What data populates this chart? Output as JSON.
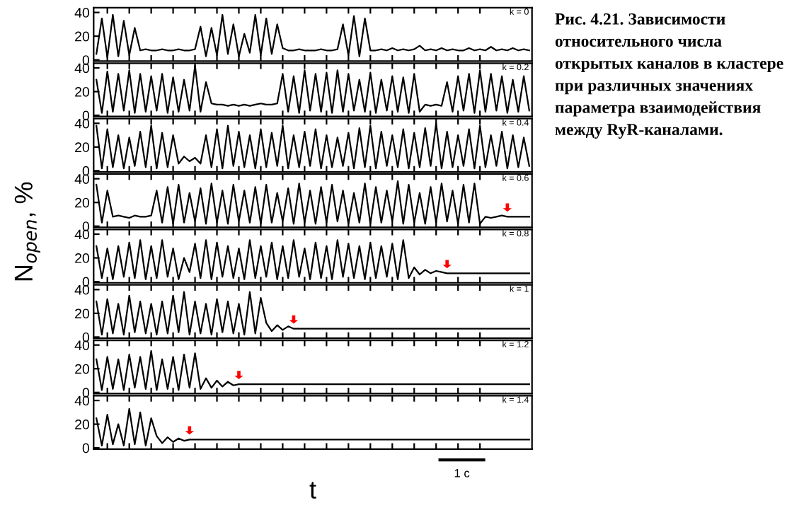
{
  "chart_data": [
    {
      "type": "line",
      "categories": [
        null,
        null,
        null,
        null,
        null,
        null,
        null,
        null,
        null,
        null,
        null,
        null,
        null,
        null,
        null,
        null,
        null,
        null,
        null,
        null,
        null,
        null,
        null,
        null,
        null,
        null,
        null,
        null,
        null,
        null,
        null,
        null,
        null,
        null,
        null,
        null,
        null,
        null,
        null,
        null,
        null,
        null,
        null,
        null,
        null,
        null,
        null,
        null,
        null,
        null,
        null,
        null,
        null,
        null,
        null,
        null,
        null,
        null,
        null,
        null,
        null,
        null,
        null,
        null,
        null,
        null,
        null,
        null,
        null,
        null,
        null,
        null,
        null,
        null,
        null,
        null,
        null,
        null,
        null,
        null
      ],
      "values": [
        5,
        35,
        2,
        38,
        3,
        33,
        4,
        27,
        8,
        9,
        8,
        8,
        9,
        8,
        8,
        9,
        8,
        8,
        9,
        28,
        3,
        27,
        4,
        38,
        5,
        30,
        3,
        22,
        6,
        38,
        4,
        35,
        5,
        30,
        10,
        8,
        8,
        9,
        8,
        8,
        8,
        9,
        8,
        8,
        9,
        30,
        4,
        37,
        3,
        35,
        8,
        8,
        9,
        8,
        10,
        8,
        9,
        8,
        9,
        12,
        8,
        9,
        8,
        10,
        8,
        9,
        8,
        8,
        10,
        8,
        9,
        8,
        11,
        8,
        9,
        8,
        10,
        8,
        9,
        8
      ],
      "color": "#000000",
      "ylim": [
        -1,
        44
      ],
      "yticks": [
        0,
        20,
        40
      ],
      "tick_labels": "y",
      "grid": false,
      "annotations": [
        "k = 0",
        "Рис. 4.21. Зависимости относительного числа открытых каналов в кластере при различных значениях параметра взаимодействия между RyR-каналами."
      ]
    },
    {
      "type": "line",
      "categories": [
        null,
        null,
        null,
        null,
        null,
        null,
        null,
        null,
        null,
        null,
        null,
        null,
        null,
        null,
        null,
        null,
        null,
        null,
        null,
        null,
        null,
        null,
        null,
        null,
        null,
        null,
        null,
        null,
        null,
        null,
        null,
        null,
        null,
        null,
        null,
        null,
        null,
        null,
        null,
        null,
        null,
        null,
        null,
        null,
        null,
        null,
        null,
        null,
        null,
        null,
        null,
        null,
        null,
        null,
        null,
        null,
        null,
        null,
        null,
        null,
        null,
        null,
        null,
        null,
        null,
        null,
        null,
        null,
        null,
        null,
        null,
        null,
        null,
        null,
        null,
        null,
        null,
        null,
        null,
        null
      ],
      "values": [
        30,
        2,
        37,
        3,
        35,
        4,
        38,
        2,
        35,
        3,
        33,
        4,
        35,
        2,
        32,
        3,
        30,
        4,
        42,
        3,
        28,
        10,
        9,
        9,
        8,
        9,
        8,
        9,
        8,
        9,
        10,
        9,
        9,
        10,
        35,
        3,
        33,
        2,
        38,
        4,
        35,
        3,
        36,
        2,
        38,
        3,
        35,
        4,
        30,
        3,
        36,
        2,
        30,
        4,
        33,
        3,
        32,
        2,
        35,
        3,
        9,
        8,
        9,
        8,
        28,
        3,
        33,
        4,
        35,
        2,
        38,
        3,
        35,
        4,
        33,
        2,
        30,
        3,
        33,
        4
      ],
      "color": "#000000",
      "ylim": [
        -1,
        44
      ],
      "yticks": [
        0,
        20,
        40
      ],
      "tick_labels": "y",
      "grid": false,
      "annotations": [
        "k = 0.2"
      ]
    },
    {
      "type": "line",
      "categories": [
        null,
        null,
        null,
        null,
        null,
        null,
        null,
        null,
        null,
        null,
        null,
        null,
        null,
        null,
        null,
        null,
        null,
        null,
        null,
        null,
        null,
        null,
        null,
        null,
        null,
        null,
        null,
        null,
        null,
        null,
        null,
        null,
        null,
        null,
        null,
        null,
        null,
        null,
        null,
        null,
        null,
        null,
        null,
        null,
        null,
        null,
        null,
        null,
        null,
        null,
        null,
        null,
        null,
        null,
        null,
        null,
        null,
        null,
        null,
        null,
        null,
        null,
        null,
        null,
        null,
        null,
        null,
        null,
        null,
        null,
        null,
        null,
        null,
        null,
        null,
        null,
        null,
        null,
        null,
        null
      ],
      "values": [
        38,
        2,
        35,
        3,
        30,
        2,
        28,
        4,
        33,
        3,
        38,
        2,
        32,
        3,
        30,
        6,
        12,
        8,
        11,
        6,
        30,
        3,
        35,
        2,
        38,
        4,
        33,
        3,
        30,
        2,
        35,
        3,
        32,
        4,
        38,
        2,
        30,
        3,
        33,
        4,
        35,
        2,
        30,
        3,
        28,
        4,
        32,
        2,
        36,
        3,
        38,
        2,
        33,
        4,
        30,
        3,
        35,
        2,
        32,
        3,
        36,
        4,
        40,
        2,
        33,
        3,
        30,
        4,
        35,
        2,
        38,
        3,
        30,
        4,
        33,
        2,
        30,
        3,
        28,
        4
      ],
      "color": "#000000",
      "ylim": [
        -1,
        44
      ],
      "yticks": [
        0,
        20,
        40
      ],
      "tick_labels": "y",
      "grid": false,
      "annotations": [
        "k = 0.4"
      ]
    },
    {
      "type": "line",
      "categories": [
        null,
        null,
        null,
        null,
        null,
        null,
        null,
        null,
        null,
        null,
        null,
        null,
        null,
        null,
        null,
        null,
        null,
        null,
        null,
        null,
        null,
        null,
        null,
        null,
        null,
        null,
        null,
        null,
        null,
        null,
        null,
        null,
        null,
        null,
        null,
        null,
        null,
        null,
        null,
        null,
        null,
        null,
        null,
        null,
        null,
        null,
        null,
        null,
        null,
        null,
        null,
        null,
        null,
        null,
        null,
        null,
        null,
        null,
        null,
        null,
        null,
        null,
        null,
        null,
        null,
        null,
        null,
        null,
        null,
        null,
        null,
        null,
        null,
        null,
        null,
        null,
        null,
        null,
        null,
        null
      ],
      "values": [
        35,
        3,
        30,
        8,
        9,
        8,
        7,
        9,
        8,
        8,
        9,
        30,
        3,
        33,
        2,
        35,
        3,
        28,
        4,
        32,
        2,
        36,
        3,
        30,
        2,
        35,
        4,
        30,
        3,
        33,
        2,
        35,
        3,
        28,
        4,
        32,
        2,
        36,
        3,
        30,
        2,
        33,
        3,
        35,
        4,
        30,
        2,
        28,
        3,
        36,
        2,
        33,
        3,
        30,
        4,
        38,
        2,
        35,
        3,
        28,
        2,
        33,
        3,
        36,
        4,
        30,
        2,
        35,
        3,
        36,
        2,
        8,
        7,
        8,
        9,
        8,
        8,
        8,
        8,
        8
      ],
      "color": "#000000",
      "ylim": [
        -1,
        44
      ],
      "yticks": [
        0,
        20,
        40
      ],
      "tick_labels": "y",
      "grid": false,
      "ylabel": "N$_{open}$, %",
      "annotations": [
        "k = 0.6"
      ]
    },
    {
      "type": "line",
      "categories": [
        null,
        null,
        null,
        null,
        null,
        null,
        null,
        null,
        null,
        null,
        null,
        null,
        null,
        null,
        null,
        null,
        null,
        null,
        null,
        null,
        null,
        null,
        null,
        null,
        null,
        null,
        null,
        null,
        null,
        null,
        null,
        null,
        null,
        null,
        null,
        null,
        null,
        null,
        null,
        null,
        null,
        null,
        null,
        null,
        null,
        null,
        null,
        null,
        null,
        null,
        null,
        null,
        null,
        null,
        null,
        null,
        null,
        null,
        null,
        null,
        null,
        null,
        null,
        null,
        null,
        null,
        null,
        null,
        null,
        null,
        null,
        null,
        null,
        null,
        null,
        null,
        null,
        null,
        null,
        null
      ],
      "values": [
        30,
        3,
        28,
        2,
        30,
        4,
        33,
        3,
        35,
        2,
        30,
        3,
        35,
        4,
        28,
        2,
        20,
        8,
        32,
        3,
        35,
        2,
        33,
        4,
        30,
        3,
        28,
        2,
        35,
        3,
        30,
        4,
        33,
        2,
        30,
        3,
        35,
        4,
        28,
        2,
        33,
        3,
        30,
        2,
        35,
        4,
        32,
        3,
        30,
        2,
        33,
        3,
        30,
        4,
        32,
        2,
        35,
        3,
        12,
        6,
        10,
        7,
        9,
        8,
        7,
        7,
        7,
        7,
        7,
        7,
        7,
        7,
        7,
        7,
        7,
        7,
        7,
        7,
        7,
        7
      ],
      "color": "#000000",
      "ylim": [
        -1,
        44
      ],
      "yticks": [
        0,
        20,
        40
      ],
      "tick_labels": "y",
      "grid": false,
      "annotations": [
        "k = 0.8"
      ]
    },
    {
      "type": "line",
      "categories": [
        null,
        null,
        null,
        null,
        null,
        null,
        null,
        null,
        null,
        null,
        null,
        null,
        null,
        null,
        null,
        null,
        null,
        null,
        null,
        null,
        null,
        null,
        null,
        null,
        null,
        null,
        null,
        null,
        null,
        null,
        null,
        null,
        null,
        null,
        null,
        null,
        null,
        null,
        null,
        null,
        null,
        null,
        null,
        null,
        null,
        null,
        null,
        null,
        null,
        null,
        null,
        null,
        null,
        null,
        null,
        null,
        null,
        null,
        null,
        null,
        null,
        null,
        null,
        null,
        null,
        null,
        null,
        null,
        null,
        null,
        null,
        null,
        null,
        null,
        null,
        null,
        null,
        null,
        null,
        null
      ],
      "values": [
        30,
        2,
        32,
        3,
        28,
        2,
        35,
        4,
        30,
        3,
        28,
        2,
        30,
        3,
        35,
        4,
        38,
        2,
        30,
        3,
        28,
        2,
        32,
        4,
        30,
        3,
        28,
        2,
        38,
        3,
        33,
        12,
        5,
        10,
        6,
        9,
        7,
        7,
        7,
        7,
        7,
        7,
        7,
        7,
        7,
        7,
        7,
        7,
        7,
        7,
        7,
        7,
        7,
        7,
        7,
        7,
        7,
        7,
        7,
        7,
        7,
        7,
        7,
        7,
        7,
        7,
        7,
        7,
        7,
        7,
        7,
        7,
        7,
        7,
        7,
        7,
        7,
        7,
        7,
        7
      ],
      "color": "#000000",
      "ylim": [
        -1,
        44
      ],
      "yticks": [
        0,
        20,
        40
      ],
      "tick_labels": "y",
      "grid": false,
      "annotations": [
        "k = 1"
      ]
    },
    {
      "type": "line",
      "categories": [
        null,
        null,
        null,
        null,
        null,
        null,
        null,
        null,
        null,
        null,
        null,
        null,
        null,
        null,
        null,
        null,
        null,
        null,
        null,
        null,
        null,
        null,
        null,
        null,
        null,
        null,
        null,
        null,
        null,
        null,
        null,
        null,
        null,
        null,
        null,
        null,
        null,
        null,
        null,
        null,
        null,
        null,
        null,
        null,
        null,
        null,
        null,
        null,
        null,
        null,
        null,
        null,
        null,
        null,
        null,
        null,
        null,
        null,
        null,
        null,
        null,
        null,
        null,
        null,
        null,
        null,
        null,
        null,
        null,
        null,
        null,
        null,
        null,
        null,
        null,
        null,
        null,
        null,
        null,
        null
      ],
      "values": [
        28,
        2,
        30,
        3,
        28,
        2,
        32,
        4,
        30,
        3,
        35,
        2,
        28,
        3,
        30,
        2,
        32,
        4,
        33,
        3,
        12,
        4,
        10,
        5,
        9,
        6,
        7,
        7,
        7,
        7,
        7,
        7,
        7,
        7,
        7,
        7,
        7,
        7,
        7,
        7,
        7,
        7,
        7,
        7,
        7,
        7,
        7,
        7,
        7,
        7,
        7,
        7,
        7,
        7,
        7,
        7,
        7,
        7,
        7,
        7,
        7,
        7,
        7,
        7,
        7,
        7,
        7,
        7,
        7,
        7,
        7,
        7,
        7,
        7,
        7,
        7,
        7,
        7,
        7,
        7
      ],
      "color": "#000000",
      "ylim": [
        -1,
        44
      ],
      "yticks": [
        0,
        20,
        40
      ],
      "tick_labels": "y",
      "grid": false,
      "annotations": [
        "k = 1.2"
      ]
    },
    {
      "type": "line",
      "categories": [
        null,
        null,
        null,
        null,
        null,
        null,
        null,
        null,
        null,
        null,
        null,
        null,
        null,
        null,
        null,
        null,
        null,
        null,
        null,
        null,
        null,
        null,
        null,
        null,
        null,
        null,
        null,
        null,
        null,
        null,
        null,
        null,
        null,
        null,
        null,
        null,
        null,
        null,
        null,
        null,
        null,
        null,
        null,
        null,
        null,
        null,
        null,
        null,
        null,
        null,
        null,
        null,
        null,
        null,
        null,
        null,
        null,
        null,
        null,
        null,
        null,
        null,
        null,
        null,
        null,
        null,
        null,
        null,
        null,
        null,
        null,
        null,
        null,
        null,
        null,
        null,
        null,
        null,
        null,
        null
      ],
      "values": [
        25,
        2,
        28,
        3,
        20,
        2,
        33,
        3,
        30,
        2,
        25,
        10,
        4,
        9,
        5,
        8,
        6,
        7,
        7,
        7,
        7,
        7,
        7,
        7,
        7,
        7,
        7,
        7,
        7,
        7,
        7,
        7,
        7,
        7,
        7,
        7,
        7,
        7,
        7,
        7,
        7,
        7,
        7,
        7,
        7,
        7,
        7,
        7,
        7,
        7,
        7,
        7,
        7,
        7,
        7,
        7,
        7,
        7,
        7,
        7,
        7,
        7,
        7,
        7,
        7,
        7,
        7,
        7,
        7,
        7,
        7,
        7,
        7,
        7,
        7,
        7,
        7,
        7,
        7,
        7
      ],
      "color": "#000000",
      "ylim": [
        -1,
        44
      ],
      "yticks": [
        0,
        20,
        40
      ],
      "tick_labels": "y",
      "grid": false,
      "xlabel": "t",
      "annotations": [
        "k = 1.4",
        "1 c"
      ]
    }
  ]
}
